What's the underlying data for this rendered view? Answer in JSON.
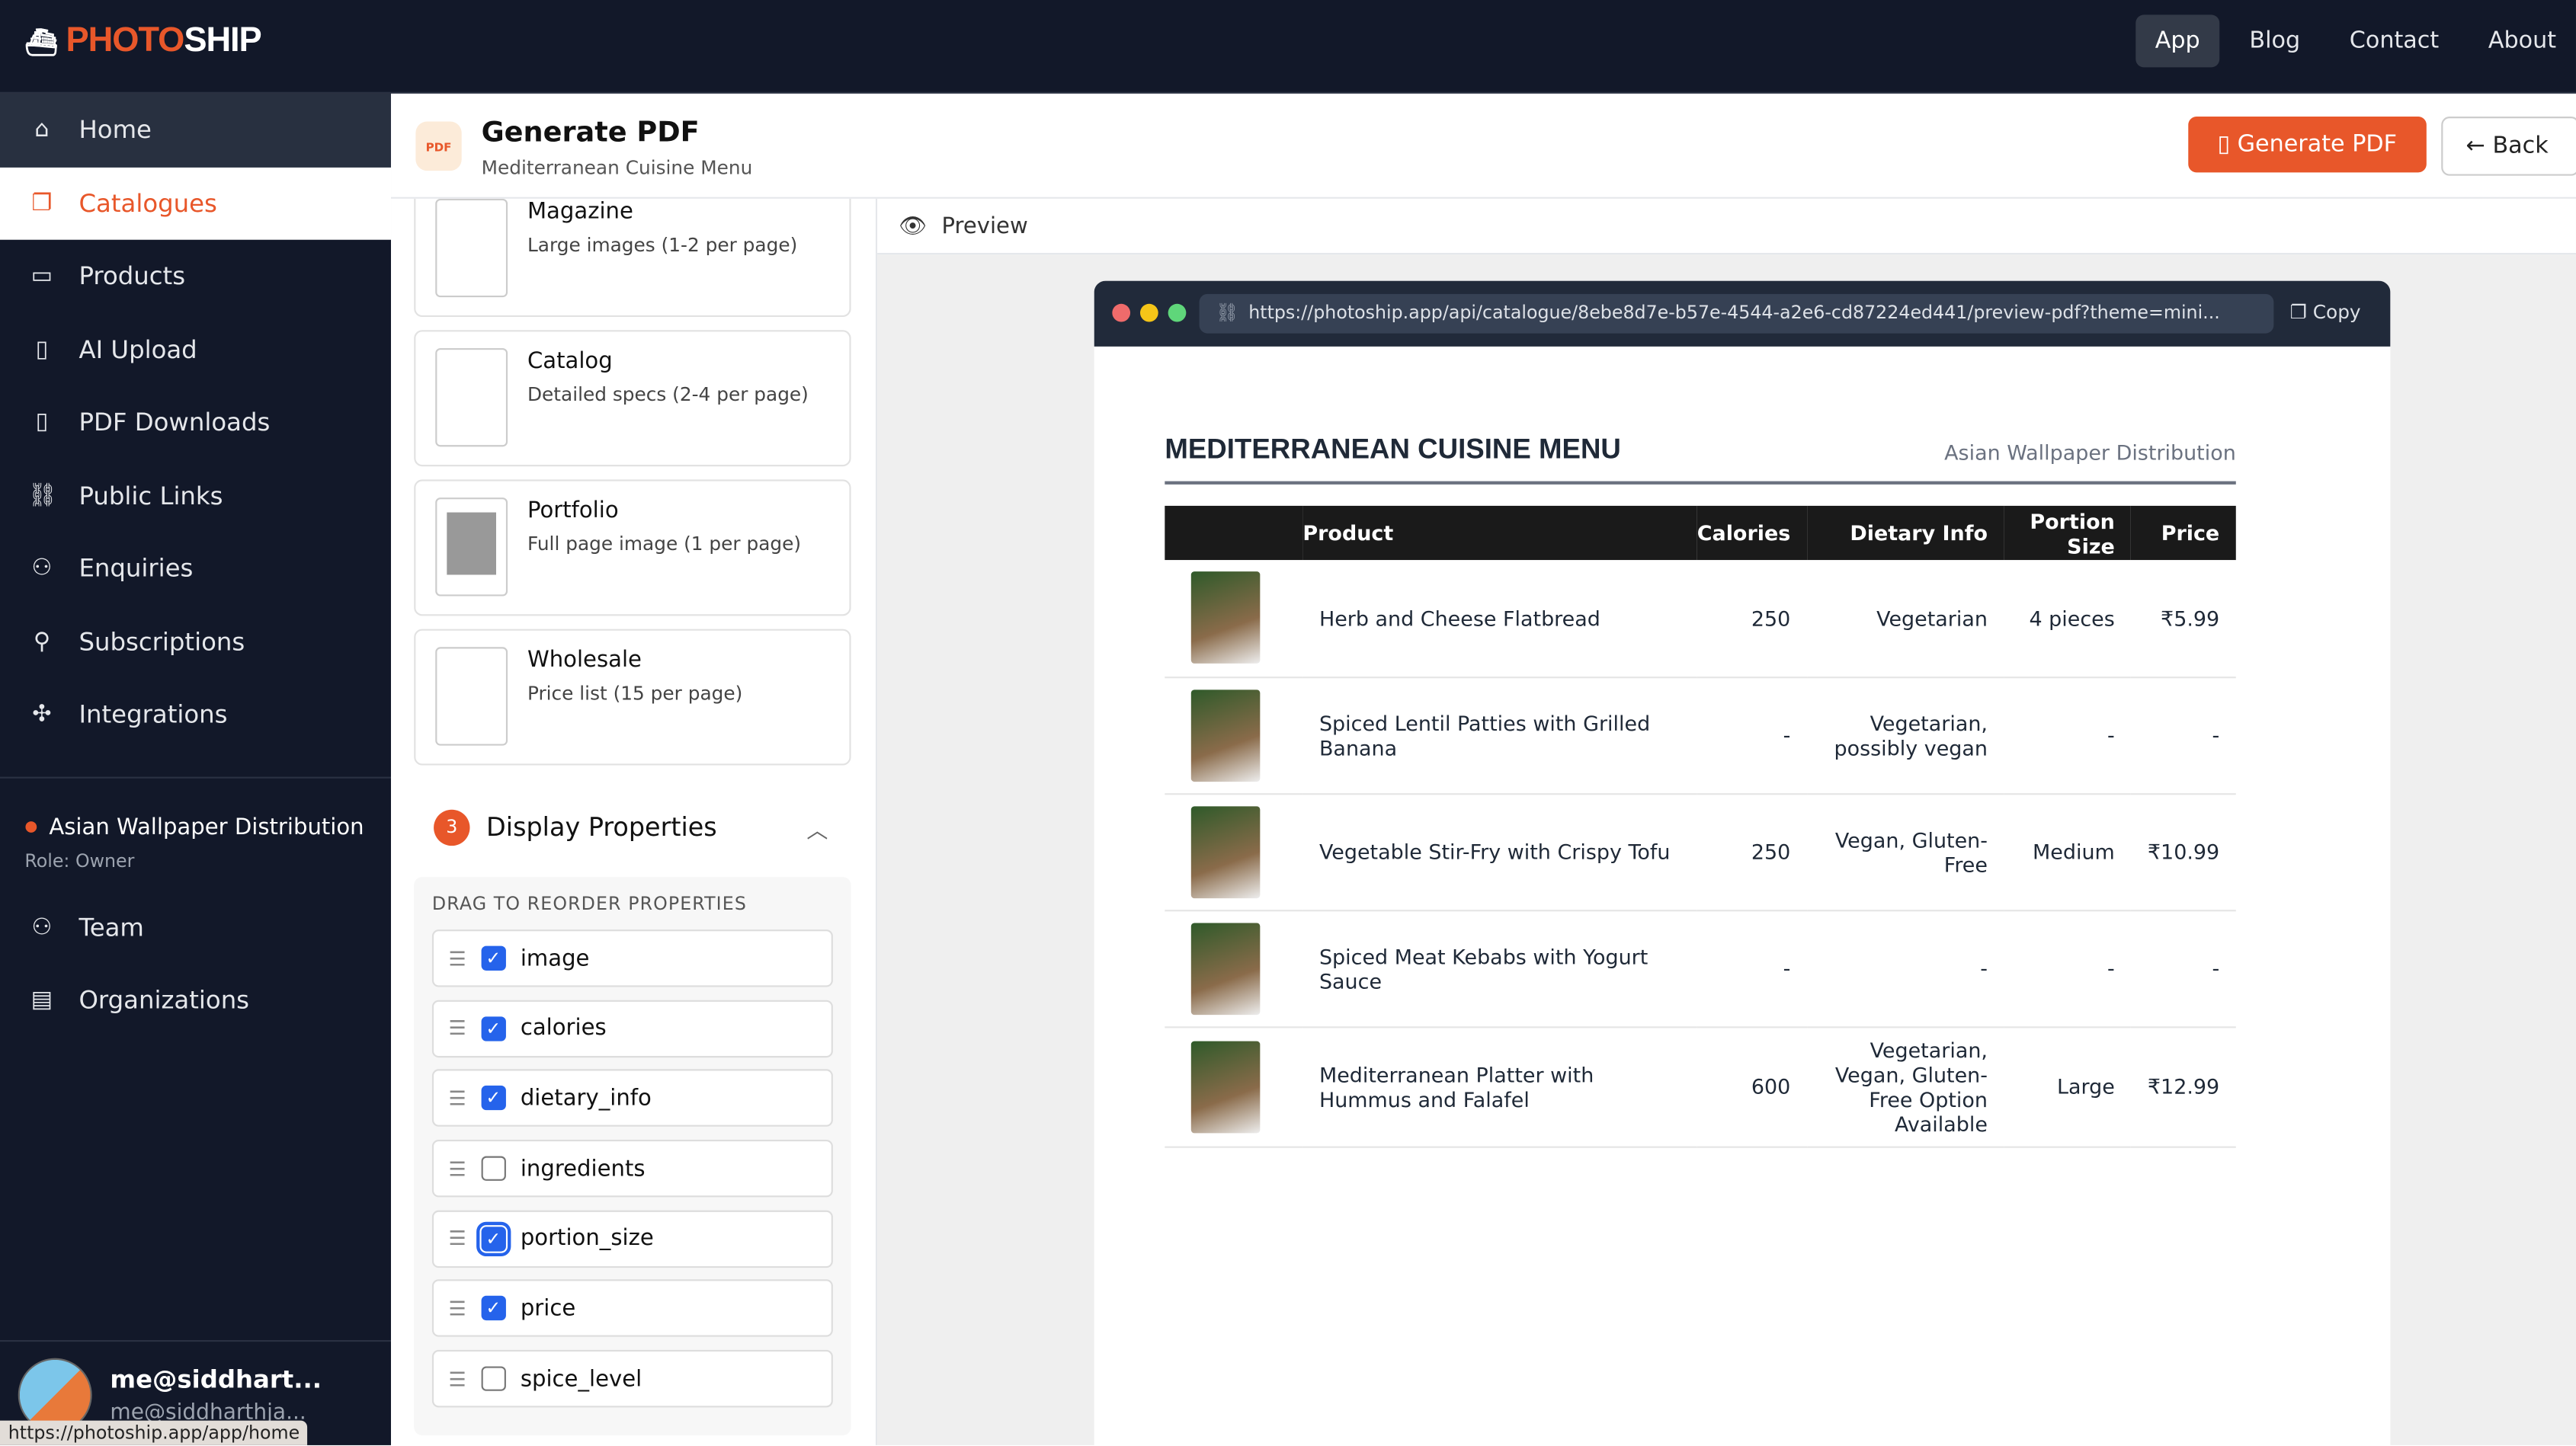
{
  "brand": {
    "part1": "PHOTO",
    "part2": "SHIP",
    "accent": "#e8572a"
  },
  "topnav": [
    "App",
    "Blog",
    "Contact",
    "About"
  ],
  "sidebar": {
    "items": [
      {
        "label": "Home",
        "icon": "home-icon"
      },
      {
        "label": "Catalogues",
        "icon": "catalogues-icon"
      },
      {
        "label": "Products",
        "icon": "products-icon"
      },
      {
        "label": "AI Upload",
        "icon": "ai-upload-icon"
      },
      {
        "label": "PDF Downloads",
        "icon": "pdf-icon"
      },
      {
        "label": "Public Links",
        "icon": "link-icon"
      },
      {
        "label": "Enquiries",
        "icon": "users-icon"
      },
      {
        "label": "Subscriptions",
        "icon": "subscriptions-icon"
      },
      {
        "label": "Integrations",
        "icon": "puzzle-icon"
      }
    ],
    "org": {
      "name": "Asian Wallpaper Distribution",
      "role": "Role: Owner"
    },
    "org_items": [
      {
        "label": "Team"
      },
      {
        "label": "Organizations"
      }
    ],
    "user": {
      "name": "me@siddhart...",
      "email": "me@siddharthja..."
    }
  },
  "status_url": "https://photoship.app/app/home",
  "header": {
    "title": "Generate PDF",
    "subtitle": "Mediterranean Cuisine Menu",
    "generate": "Generate PDF",
    "back": "Back"
  },
  "layouts": [
    {
      "title": "Magazine",
      "desc": "Large images (1-2 per page)"
    },
    {
      "title": "Catalog",
      "desc": "Detailed specs (2-4 per page)"
    },
    {
      "title": "Portfolio",
      "desc": "Full page image (1 per page)"
    },
    {
      "title": "Wholesale",
      "desc": "Price list (15 per page)"
    }
  ],
  "display": {
    "step": "3",
    "title": "Display Properties",
    "hint": "DRAG TO REORDER PROPERTIES",
    "props": [
      {
        "name": "image",
        "checked": true
      },
      {
        "name": "calories",
        "checked": true
      },
      {
        "name": "dietary_info",
        "checked": true
      },
      {
        "name": "ingredients",
        "checked": false
      },
      {
        "name": "portion_size",
        "checked": true
      },
      {
        "name": "price",
        "checked": true
      },
      {
        "name": "spice_level",
        "checked": false
      }
    ]
  },
  "preview": {
    "label": "Preview",
    "url": "https://photoship.app/api/catalogue/8ebe8d7e-b57e-4544-a2e6-cd87224ed441/preview-pdf?theme=mini...",
    "copy": "Copy",
    "doc_title": "MEDITERRANEAN CUISINE MENU",
    "company": "Asian Wallpaper Distribution",
    "columns": [
      "Product",
      "Calories",
      "Dietary Info",
      "Portion Size",
      "Price"
    ],
    "rows": [
      [
        "Herb and Cheese Flatbread",
        "250",
        "Vegetarian",
        "4 pieces",
        "₹5.99"
      ],
      [
        "Spiced Lentil Patties with Grilled Banana",
        "-",
        "Vegetarian, possibly vegan",
        "-",
        "-"
      ],
      [
        "Vegetable Stir-Fry with Crispy Tofu",
        "250",
        "Vegan, Gluten-Free",
        "Medium",
        "₹10.99"
      ],
      [
        "Spiced Meat Kebabs with Yogurt Sauce",
        "-",
        "-",
        "-",
        "-"
      ],
      [
        "Mediterranean Platter with Hummus and Falafel",
        "600",
        "Vegetarian, Vegan, Gluten-Free Option Available",
        "Large",
        "₹12.99"
      ]
    ]
  }
}
